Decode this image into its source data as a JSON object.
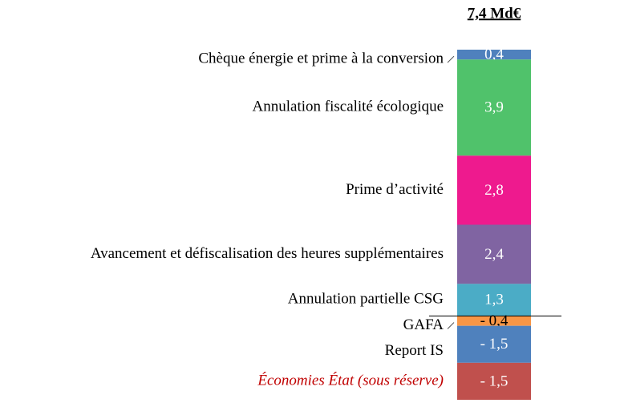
{
  "chart_data": {
    "type": "bar",
    "stacked": true,
    "total_label": "7,4 Md€",
    "categories": [
      "Chèque énergie et prime à la conversion",
      "Annulation fiscalité écologique",
      "Prime d’activité",
      "Avancement et défiscalisation des heures supplémentaires",
      "Annulation partielle CSG",
      "GAFA",
      "Report IS",
      "Économies État (sous réserve)"
    ],
    "values": [
      0.4,
      3.9,
      2.8,
      2.4,
      1.3,
      -0.4,
      -1.5,
      -1.5
    ],
    "value_labels": [
      "0,4",
      "3,9",
      "2,8",
      "2,4",
      "1,3",
      "- 0,4",
      "- 1,5",
      "- 1,5"
    ],
    "colors": [
      "#4f81bd",
      "#50c26b",
      "#ee1a8e",
      "#8064a2",
      "#4bacc6",
      "#f79646",
      "#4f81bd",
      "#c0504d"
    ],
    "label_colors": [
      "#000000",
      "#000000",
      "#000000",
      "#000000",
      "#000000",
      "#000000",
      "#000000",
      "#c00000"
    ],
    "value_label_colors": [
      "#ffffff",
      "#ffffff",
      "#ffffff",
      "#ffffff",
      "#ffffff",
      "#000000",
      "#ffffff",
      "#ffffff"
    ]
  }
}
